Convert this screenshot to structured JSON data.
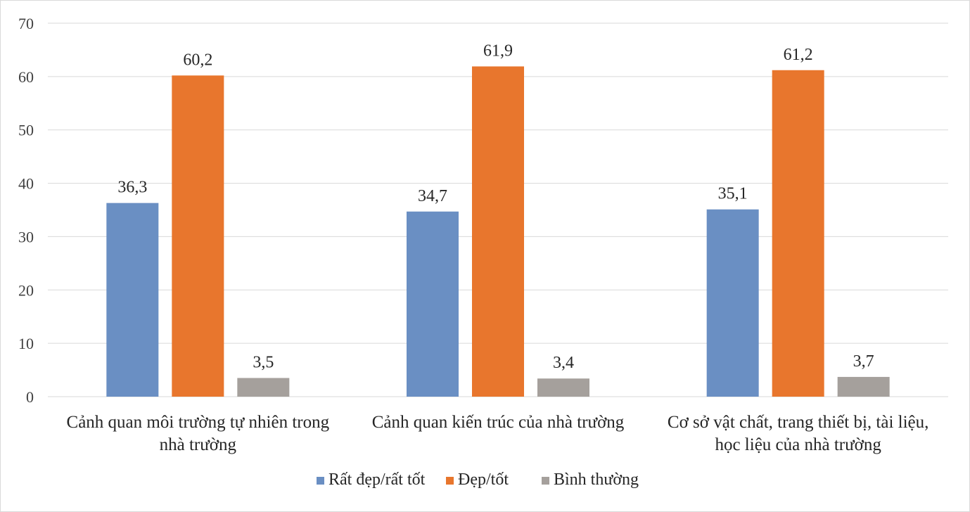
{
  "chart_data": {
    "type": "bar",
    "categories": [
      [
        "Cảnh quan môi trường tự nhiên trong",
        "nhà trường"
      ],
      [
        "Cảnh quan kiến trúc của nhà trường"
      ],
      [
        "Cơ sở vật chất, trang thiết bị, tài liệu,",
        "học liệu của nhà trường"
      ]
    ],
    "series": [
      {
        "name": "Rất đẹp/rất tốt",
        "color": "#6a8fc3",
        "values": [
          36.3,
          34.7,
          35.1
        ],
        "labels": [
          "36,3",
          "34,7",
          "35,1"
        ]
      },
      {
        "name": "Đẹp/tốt",
        "color": "#e8762d",
        "values": [
          60.2,
          61.9,
          61.2
        ],
        "labels": [
          "60,2",
          "61,9",
          "61,2"
        ]
      },
      {
        "name": "Bình thường",
        "color": "#a5a09c",
        "values": [
          3.5,
          3.4,
          3.7
        ],
        "labels": [
          "3,5",
          "3,4",
          "3,7"
        ]
      }
    ],
    "ylim": [
      0,
      70
    ],
    "yticks": [
      0,
      10,
      20,
      30,
      40,
      50,
      60,
      70
    ],
    "grid": true,
    "legend_position": "bottom",
    "xlabel": "",
    "ylabel": ""
  }
}
